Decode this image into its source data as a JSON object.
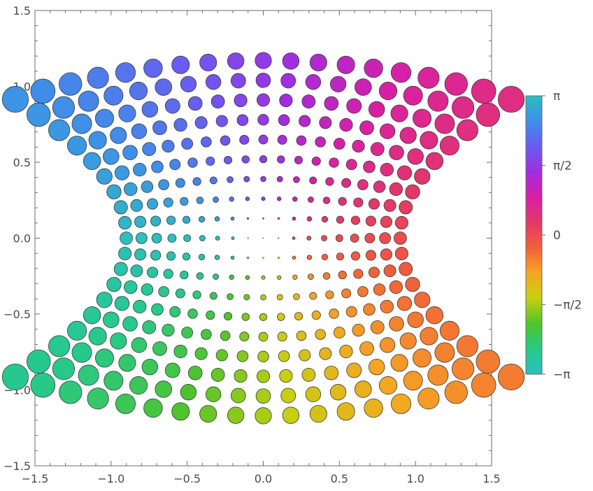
{
  "chart_data": {
    "type": "scatter",
    "title": "",
    "xlabel": "",
    "ylabel": "",
    "xlim": [
      -1.5,
      1.5
    ],
    "ylim": [
      -1.5,
      1.5
    ],
    "x_ticks": [
      "−1.5",
      "−1.0",
      "−0.5",
      "0.0",
      "0.5",
      "1.0",
      "1.5"
    ],
    "y_ticks": [
      "−1.5",
      "−1.0",
      "−0.5",
      "0.0",
      "0.5",
      "1.0",
      "1.5"
    ],
    "x_tick_values": [
      -1.5,
      -1.0,
      -0.5,
      0.0,
      0.5,
      1.0,
      1.5
    ],
    "y_tick_values": [
      -1.5,
      -1.0,
      -0.5,
      0.0,
      0.5,
      1.0,
      1.5
    ],
    "grid": false,
    "point_grid": {
      "u_range": [
        -0.9,
        0.9
      ],
      "v_range": [
        -0.9,
        0.9
      ],
      "steps": 19
    },
    "mapping": "x = u*(1 + v^2), y = v*(1.3 - 0.35*u^2); color = arg(x + i*y); size ∝ |(x, y)|",
    "colorbar": {
      "labels": [
        "π",
        "π/2",
        "0",
        "−π/2",
        "−π"
      ],
      "label_values": [
        3.14159,
        1.5708,
        0,
        -1.5708,
        -3.14159
      ],
      "range": [
        -3.14159,
        3.14159
      ],
      "stops": [
        "#2bbfbf",
        "#27c98a",
        "#4fc42a",
        "#c7cf10",
        "#f5a623",
        "#f2603a",
        "#e33868",
        "#d81fa5",
        "#a02ee0",
        "#6a5cf0",
        "#3f8fe8",
        "#2bbfbf"
      ]
    },
    "colors": {
      "frame": "#6b6b6b",
      "tick_label": "#4a4a4a",
      "point_stroke": "#3a3a3a"
    }
  }
}
